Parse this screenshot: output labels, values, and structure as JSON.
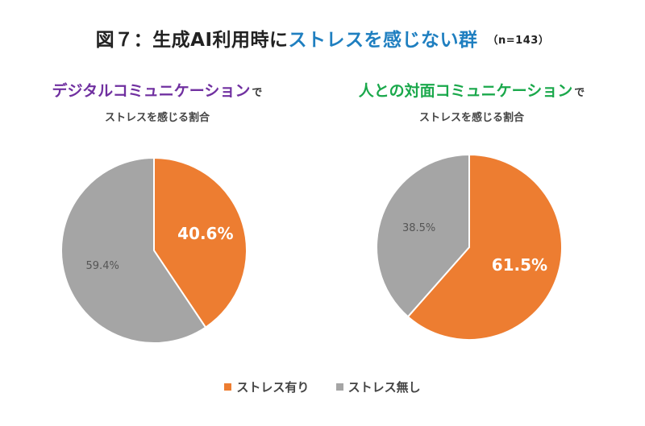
{
  "title": {
    "prefix": "図７：生成AI利用時に",
    "highlight": "ストレスを感じない群",
    "n": "（n=143）"
  },
  "colors": {
    "stress": "#ed7d31",
    "no_stress": "#a5a5a5"
  },
  "charts": {
    "left": {
      "heading": "デジタルコミュニケーション",
      "heading_suffix": "で",
      "subheading": "ストレスを感じる割合"
    },
    "right": {
      "heading": "人との対面コミュニケーション",
      "heading_suffix": "で",
      "subheading": "ストレスを感じる割合"
    }
  },
  "legend": {
    "stress": "ストレス有り",
    "no_stress": "ストレス無し"
  },
  "chart_data": [
    {
      "type": "pie",
      "title": "デジタルコミュニケーションでストレスを感じる割合",
      "slices": [
        {
          "label": "ストレス有り",
          "value": 40.6,
          "display": "40.6%",
          "color": "#ed7d31"
        },
        {
          "label": "ストレス無し",
          "value": 59.4,
          "display": "59.4%",
          "color": "#a5a5a5"
        }
      ]
    },
    {
      "type": "pie",
      "title": "人との対面コミュニケーションでストレスを感じる割合",
      "slices": [
        {
          "label": "ストレス有り",
          "value": 61.5,
          "display": "61.5%",
          "color": "#ed7d31"
        },
        {
          "label": "ストレス無し",
          "value": 38.5,
          "display": "38.5%",
          "color": "#a5a5a5"
        }
      ]
    }
  ]
}
